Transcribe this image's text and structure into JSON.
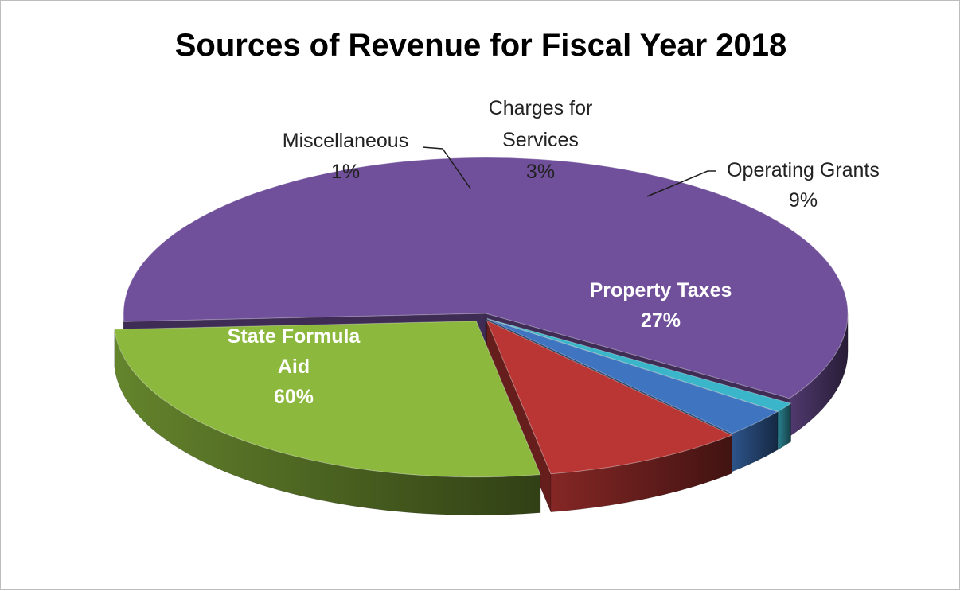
{
  "chart_data": {
    "type": "pie",
    "title": "Sources of Revenue for Fiscal Year 2018",
    "slices": [
      {
        "label": "State Formula Aid",
        "value": 60,
        "value_label": "60%",
        "color": "#70509a"
      },
      {
        "label": "Miscellaneous",
        "value": 1,
        "value_label": "1%",
        "color": "#3bb5c9"
      },
      {
        "label": "Charges for Services",
        "value": 3,
        "value_label": "3%",
        "color": "#3f74c0"
      },
      {
        "label": "Operating Grants",
        "value": 9,
        "value_label": "9%",
        "color": "#b93634"
      },
      {
        "label": "Property Taxes",
        "value": 27,
        "value_label": "27%",
        "color": "#8bb83d"
      }
    ],
    "label_lines": [
      {
        "text": "State Formula",
        "slice": 0,
        "style": "inside"
      },
      {
        "text": "Aid",
        "slice": 0,
        "style": "inside"
      },
      {
        "text": "60%",
        "slice": 0,
        "style": "inside"
      },
      {
        "text": "Miscellaneous",
        "slice": 1,
        "style": "outside"
      },
      {
        "text": "1%",
        "slice": 1,
        "style": "outside"
      },
      {
        "text": "Charges for",
        "slice": 2,
        "style": "outside"
      },
      {
        "text": "Services",
        "slice": 2,
        "style": "outside"
      },
      {
        "text": "3%",
        "slice": 2,
        "style": "outside"
      },
      {
        "text": "Operating Grants",
        "slice": 3,
        "style": "outside"
      },
      {
        "text": "9%",
        "slice": 3,
        "style": "outside"
      },
      {
        "text": "Property Taxes",
        "slice": 4,
        "style": "inside"
      },
      {
        "text": "27%",
        "slice": 4,
        "style": "inside"
      }
    ]
  }
}
